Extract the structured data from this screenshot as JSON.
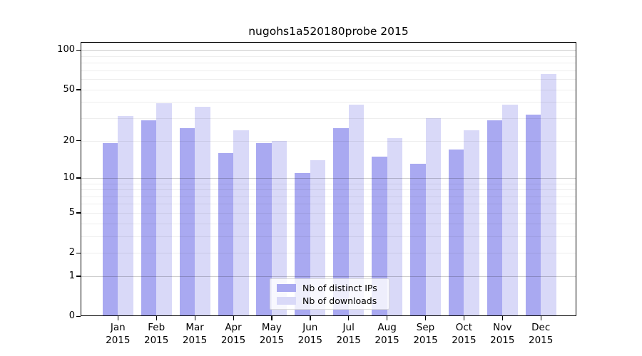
{
  "chart_data": {
    "type": "bar",
    "title": "nugohs1a520180probe 2015",
    "categories": [
      "Jan",
      "Feb",
      "Mar",
      "Apr",
      "May",
      "Jun",
      "Jul",
      "Aug",
      "Sep",
      "Oct",
      "Nov",
      "Dec"
    ],
    "category_year": "2015",
    "series": [
      {
        "name": "Nb of distinct IPs",
        "color": "#a9a9f1",
        "values": [
          19,
          29,
          25,
          16,
          19,
          11,
          25,
          15,
          13,
          17,
          29,
          32
        ]
      },
      {
        "name": "Nb of downloads",
        "color": "#d9d9f8",
        "values": [
          31,
          39,
          37,
          24,
          20,
          14,
          38,
          21,
          30,
          24,
          38,
          66
        ]
      }
    ],
    "xlabel": "",
    "ylabel": "",
    "yscale": "log1p",
    "ylim": [
      0,
      116
    ],
    "yticks": [
      0,
      1,
      2,
      5,
      10,
      20,
      50,
      100
    ],
    "major_gridlines": [
      1,
      10,
      100
    ],
    "minor_gridlines": [
      2,
      3,
      4,
      5,
      6,
      7,
      8,
      9,
      20,
      30,
      40,
      50,
      60,
      70,
      80,
      90
    ],
    "grid": "on",
    "legend_position": "inside-bottom-center",
    "colors": {
      "bar_dark": "#a9a9f1",
      "bar_light": "#d9d9f8",
      "axis": "#000000",
      "background": "#ffffff"
    }
  }
}
